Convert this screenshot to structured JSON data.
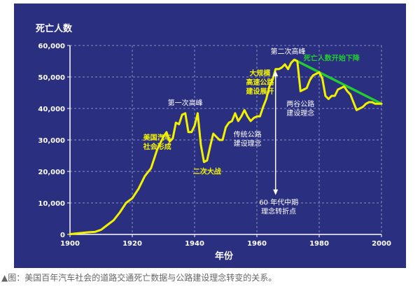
{
  "caption": "▲图：美国百年汽车社会的道路交通死亡数据与公路建设理念转变的关系。",
  "colors": {
    "background": "#2b2f7f",
    "grid": "#8a8fc8",
    "text": "#ffffff",
    "series": "#f2f200",
    "trend": "#22cc33",
    "arrow": "#ffffff"
  },
  "chart_data": {
    "type": "line",
    "ylabel": "死亡人数",
    "xlabel": "年份",
    "xlim": [
      1900,
      2000
    ],
    "ylim": [
      0,
      60000
    ],
    "xticks": [
      1900,
      1920,
      1940,
      1960,
      1980,
      2000
    ],
    "xtick_labels": [
      "1900",
      "1920",
      "1940",
      "1960",
      "1980",
      "2000"
    ],
    "yticks": [
      0,
      10000,
      20000,
      30000,
      40000,
      50000,
      60000
    ],
    "ytick_labels": [
      "0",
      "10,000",
      "20,000",
      "30,000",
      "40,000",
      "50,000",
      "60,000"
    ],
    "grid": true,
    "series": [
      {
        "x": [
          1900,
          1902,
          1904,
          1906,
          1908,
          1910,
          1912,
          1914,
          1916,
          1918,
          1920,
          1922,
          1924,
          1926,
          1928,
          1930,
          1931,
          1932,
          1933,
          1934,
          1935,
          1936,
          1937,
          1938,
          1939,
          1940,
          1941,
          1942,
          1943,
          1944,
          1945,
          1946,
          1947,
          1948,
          1949,
          1950,
          1951,
          1952,
          1953,
          1954,
          1955,
          1956,
          1957,
          1958,
          1959,
          1960,
          1961,
          1962,
          1963,
          1964,
          1965,
          1966,
          1967,
          1968,
          1969,
          1970,
          1971,
          1972,
          1973,
          1974,
          1975,
          1976,
          1977,
          1978,
          1979,
          1980,
          1981,
          1982,
          1983,
          1984,
          1985,
          1986,
          1987,
          1988,
          1989,
          1990,
          1991,
          1992,
          1993,
          1994,
          1995,
          1996,
          1997,
          1998,
          1999,
          2000
        ],
        "y": [
          100,
          300,
          500,
          700,
          800,
          1500,
          3000,
          4500,
          7000,
          10000,
          11500,
          14500,
          18500,
          21000,
          27000,
          31000,
          32500,
          29500,
          30500,
          35500,
          35000,
          38000,
          38500,
          32500,
          32500,
          34500,
          38500,
          28500,
          23000,
          23500,
          28000,
          32000,
          31000,
          30000,
          30000,
          34000,
          35500,
          36000,
          38500,
          36000,
          37500,
          39500,
          37500,
          36000,
          37000,
          37500,
          37500,
          40500,
          43000,
          47000,
          49000,
          52500,
          52500,
          53000,
          54000,
          52500,
          54500,
          55500,
          55000,
          45500,
          46000,
          46500,
          49000,
          50500,
          51000,
          51500,
          49500,
          44000,
          43000,
          44000,
          44000,
          46000,
          46500,
          47000,
          45500,
          44500,
          42000,
          39500,
          40000,
          40500,
          41500,
          42000,
          42000,
          41500,
          41500,
          41500
        ]
      }
    ],
    "trend_line": {
      "x": [
        1972,
        2000
      ],
      "y": [
        55500,
        41500
      ]
    },
    "arrow": {
      "x": 1966,
      "y_from": 52000,
      "y_to": 12500
    },
    "annotations": [
      {
        "key": "a1",
        "lines": [
          "美国汽车",
          "社会形成"
        ],
        "x": 1928,
        "y": 30000,
        "anchor": "middle",
        "color": "#f2f200",
        "bold": true
      },
      {
        "key": "a2",
        "lines": [
          "第一次高峰"
        ],
        "x": 1937,
        "y": 41000,
        "anchor": "middle",
        "color": "#ffffff",
        "bold": false
      },
      {
        "key": "a3",
        "lines": [
          "二次大战"
        ],
        "x": 1944,
        "y": 19200,
        "anchor": "middle",
        "color": "#f2f200",
        "bold": true
      },
      {
        "key": "a4",
        "lines": [
          "大规模",
          "高速公路",
          "建设展开"
        ],
        "x": 1961,
        "y": 50500,
        "anchor": "middle",
        "color": "#f2f200",
        "bold": true
      },
      {
        "key": "a5",
        "lines": [
          "传统公路",
          "建设理念"
        ],
        "x": 1957,
        "y": 31000,
        "anchor": "middle",
        "color": "#ffffff",
        "bold": false
      },
      {
        "key": "a6",
        "lines": [
          "60 年代中期",
          "理念转折点"
        ],
        "x": 1967,
        "y": 9500,
        "anchor": "middle",
        "color": "#ffffff",
        "bold": false
      },
      {
        "key": "a7",
        "lines": [
          "第二次高峰"
        ],
        "x": 1970,
        "y": 57300,
        "anchor": "middle",
        "color": "#ffffff",
        "bold": false
      },
      {
        "key": "a8",
        "lines": [
          "死亡人数开始下降"
        ],
        "x": 1975,
        "y": 55200,
        "anchor": "start",
        "color": "#22cc33",
        "bold": true
      },
      {
        "key": "a9",
        "lines": [
          "两谷公路",
          "建设理念"
        ],
        "x": 1974,
        "y": 40700,
        "anchor": "middle",
        "color": "#ffffff",
        "bold": false
      }
    ]
  }
}
